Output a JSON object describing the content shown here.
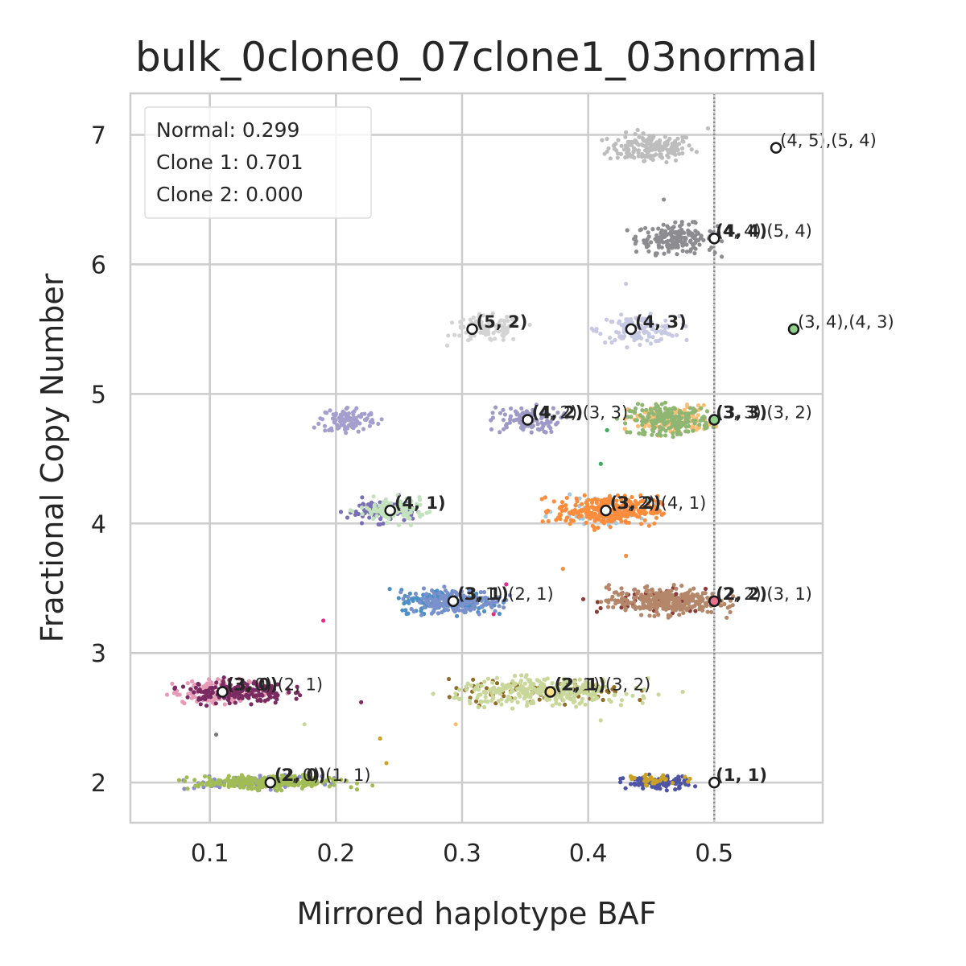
{
  "chart_data": {
    "type": "scatter",
    "title": "bulk_0clone0_07clone1_03normal",
    "xlabel": "Mirrored haplotype BAF",
    "ylabel": "Fractional Copy Number",
    "xlim": [
      0.037,
      0.586
    ],
    "ylim": [
      1.69,
      7.32
    ],
    "xticks": [
      0.1,
      0.2,
      0.3,
      0.4,
      0.5
    ],
    "xtick_labels": [
      "0.1",
      "0.2",
      "0.3",
      "0.4",
      "0.5"
    ],
    "yticks": [
      2,
      3,
      4,
      5,
      6,
      7
    ],
    "ytick_labels": [
      "2",
      "3",
      "4",
      "5",
      "6",
      "7"
    ],
    "grid": true,
    "reference_line": {
      "x": 0.5,
      "style": "dotted",
      "color": "#888888"
    },
    "legend": {
      "placement": "top-left",
      "lines": [
        "Normal: 0.299",
        "Clone 1: 0.701",
        "Clone 2: 0.000"
      ]
    },
    "clusters": [
      {
        "x": 0.45,
        "y": 6.9,
        "sx": 0.017,
        "sy": 0.055,
        "n": 170,
        "color": "#bdbdbd"
      },
      {
        "x": 0.47,
        "y": 6.2,
        "sx": 0.016,
        "sy": 0.055,
        "n": 190,
        "color": "#8c8c91"
      },
      {
        "x": 0.32,
        "y": 5.5,
        "sx": 0.014,
        "sy": 0.05,
        "n": 110,
        "color": "#d4d4d4"
      },
      {
        "x": 0.44,
        "y": 5.5,
        "sx": 0.016,
        "sy": 0.05,
        "n": 130,
        "color": "#c7c9e3"
      },
      {
        "x": 0.21,
        "y": 4.8,
        "sx": 0.011,
        "sy": 0.05,
        "n": 110,
        "color": "#a59fce"
      },
      {
        "x": 0.35,
        "y": 4.8,
        "sx": 0.014,
        "sy": 0.05,
        "n": 100,
        "color": "#9e9ac8"
      },
      {
        "x": 0.465,
        "y": 4.8,
        "sx": 0.016,
        "sy": 0.055,
        "n": 130,
        "color": "#fdbe73"
      },
      {
        "x": 0.465,
        "y": 4.8,
        "sx": 0.016,
        "sy": 0.055,
        "n": 200,
        "color": "#8fb672"
      },
      {
        "x": 0.235,
        "y": 4.1,
        "sx": 0.013,
        "sy": 0.045,
        "n": 90,
        "color": "#7a6fb5"
      },
      {
        "x": 0.245,
        "y": 4.1,
        "sx": 0.013,
        "sy": 0.045,
        "n": 120,
        "color": "#c3e2be"
      },
      {
        "x": 0.415,
        "y": 4.1,
        "sx": 0.02,
        "sy": 0.05,
        "n": 40,
        "color": "#9ecae1"
      },
      {
        "x": 0.415,
        "y": 4.1,
        "sx": 0.02,
        "sy": 0.055,
        "n": 300,
        "color": "#fd8d3c"
      },
      {
        "x": 0.29,
        "y": 3.4,
        "sx": 0.02,
        "sy": 0.045,
        "n": 160,
        "color": "#4e8fc6"
      },
      {
        "x": 0.295,
        "y": 3.4,
        "sx": 0.018,
        "sy": 0.045,
        "n": 160,
        "color": "#7b91cc"
      },
      {
        "x": 0.455,
        "y": 3.4,
        "sx": 0.024,
        "sy": 0.05,
        "n": 60,
        "color": "#8c3c36"
      },
      {
        "x": 0.46,
        "y": 3.4,
        "sx": 0.022,
        "sy": 0.05,
        "n": 320,
        "color": "#b5876a"
      },
      {
        "x": 0.11,
        "y": 2.7,
        "sx": 0.02,
        "sy": 0.045,
        "n": 120,
        "color": "#e69ab5"
      },
      {
        "x": 0.12,
        "y": 2.7,
        "sx": 0.02,
        "sy": 0.045,
        "n": 170,
        "color": "#7a2b62"
      },
      {
        "x": 0.36,
        "y": 2.7,
        "sx": 0.035,
        "sy": 0.045,
        "n": 90,
        "color": "#8f6d27"
      },
      {
        "x": 0.365,
        "y": 2.7,
        "sx": 0.035,
        "sy": 0.05,
        "n": 300,
        "color": "#c9d89a"
      },
      {
        "x": 0.14,
        "y": 2.0,
        "sx": 0.025,
        "sy": 0.025,
        "n": 90,
        "color": "#8b8ccc"
      },
      {
        "x": 0.145,
        "y": 2.0,
        "sx": 0.028,
        "sy": 0.025,
        "n": 280,
        "color": "#a2bc55"
      },
      {
        "x": 0.455,
        "y": 2.0,
        "sx": 0.013,
        "sy": 0.025,
        "n": 110,
        "color": "#4f54a5"
      },
      {
        "x": 0.455,
        "y": 2.02,
        "sx": 0.01,
        "sy": 0.02,
        "n": 30,
        "color": "#c9a227"
      }
    ],
    "outliers": [
      {
        "x": 0.46,
        "y": 6.5,
        "color": "#8c8c91"
      },
      {
        "x": 0.43,
        "y": 5.85,
        "color": "#c7c9e3"
      },
      {
        "x": 0.495,
        "y": 7.05,
        "color": "#bdbdbd"
      },
      {
        "x": 0.41,
        "y": 4.46,
        "color": "#41ab5d"
      },
      {
        "x": 0.38,
        "y": 3.65,
        "color": "#fd8d3c"
      },
      {
        "x": 0.19,
        "y": 3.25,
        "color": "#e7298a"
      },
      {
        "x": 0.335,
        "y": 3.53,
        "color": "#e7298a"
      },
      {
        "x": 0.325,
        "y": 3.3,
        "color": "#e7298a"
      },
      {
        "x": 0.295,
        "y": 2.45,
        "color": "#fdbe73"
      },
      {
        "x": 0.175,
        "y": 2.45,
        "color": "#c9d89a"
      },
      {
        "x": 0.24,
        "y": 2.15,
        "color": "#c9a227"
      },
      {
        "x": 0.235,
        "y": 2.34,
        "color": "#c9a227"
      },
      {
        "x": 0.105,
        "y": 2.37,
        "color": "#7a7a7a"
      },
      {
        "x": 0.22,
        "y": 2.62,
        "color": "#7a2b62"
      },
      {
        "x": 0.475,
        "y": 2.7,
        "color": "#c9d89a"
      },
      {
        "x": 0.41,
        "y": 2.48,
        "color": "#c9d89a"
      },
      {
        "x": 0.43,
        "y": 3.75,
        "color": "#fd8d3c"
      },
      {
        "x": 0.405,
        "y": 3.95,
        "color": "#fd8d3c"
      },
      {
        "x": 0.415,
        "y": 4.72,
        "color": "#41ab5d"
      }
    ],
    "markers": [
      {
        "x": 0.549,
        "y": 6.9,
        "fill": "#ffffff"
      },
      {
        "x": 0.5,
        "y": 6.2,
        "fill": "#ffffff"
      },
      {
        "x": 0.5,
        "y": 6.2,
        "fill": "#ffffff"
      },
      {
        "x": 0.308,
        "y": 5.5,
        "fill": "#ffffff"
      },
      {
        "x": 0.434,
        "y": 5.5,
        "fill": "#ffffff"
      },
      {
        "x": 0.563,
        "y": 5.5,
        "fill": "#8fd18a"
      },
      {
        "x": 0.352,
        "y": 4.8,
        "fill": "#ffffff"
      },
      {
        "x": 0.5,
        "y": 4.8,
        "fill": "#8fd18a"
      },
      {
        "x": 0.243,
        "y": 4.1,
        "fill": "#ffffff"
      },
      {
        "x": 0.414,
        "y": 4.1,
        "fill": "#ffffff"
      },
      {
        "x": 0.293,
        "y": 3.4,
        "fill": "#ffffff"
      },
      {
        "x": 0.5,
        "y": 3.4,
        "fill": "#e7738f"
      },
      {
        "x": 0.11,
        "y": 2.7,
        "fill": "#ffffff"
      },
      {
        "x": 0.37,
        "y": 2.7,
        "fill": "#ffe08a"
      },
      {
        "x": 0.148,
        "y": 2.0,
        "fill": "#ffffff"
      },
      {
        "x": 0.5,
        "y": 2.0,
        "fill": "#ffffff"
      }
    ],
    "annotations": [
      {
        "x": 0.551,
        "y": 6.9,
        "text": "(4, 5),(5, 4)",
        "bold": false
      },
      {
        "x": 0.5,
        "y": 6.2,
        "text": "(4, 4)",
        "bold": true
      },
      {
        "x": 0.5,
        "y": 6.2,
        "text": "(4, 4),(5, 4)",
        "bold": false
      },
      {
        "x": 0.31,
        "y": 5.5,
        "text": "(5, 2)",
        "bold": true
      },
      {
        "x": 0.436,
        "y": 5.5,
        "text": "(4, 3)",
        "bold": true
      },
      {
        "x": 0.565,
        "y": 5.5,
        "text": "(3, 4),(4, 3)",
        "bold": false
      },
      {
        "x": 0.354,
        "y": 4.8,
        "text": "(4, 2)",
        "bold": true
      },
      {
        "x": 0.354,
        "y": 4.8,
        "text": "(4, 2),(3, 3)",
        "bold": false
      },
      {
        "x": 0.5,
        "y": 4.8,
        "text": "(3, 3)",
        "bold": true
      },
      {
        "x": 0.5,
        "y": 4.8,
        "text": "(3, 3),(3, 2)",
        "bold": false
      },
      {
        "x": 0.245,
        "y": 4.1,
        "text": "(4, 1)",
        "bold": true
      },
      {
        "x": 0.416,
        "y": 4.1,
        "text": "(3, 2)",
        "bold": true
      },
      {
        "x": 0.416,
        "y": 4.1,
        "text": "(3, 2),(4, 1)",
        "bold": false
      },
      {
        "x": 0.295,
        "y": 3.4,
        "text": "(3, 1)",
        "bold": true
      },
      {
        "x": 0.295,
        "y": 3.4,
        "text": "(3, 1),(2, 1)",
        "bold": false
      },
      {
        "x": 0.5,
        "y": 3.4,
        "text": "(2, 2)",
        "bold": true
      },
      {
        "x": 0.5,
        "y": 3.4,
        "text": "(2, 2),(3, 1)",
        "bold": false
      },
      {
        "x": 0.112,
        "y": 2.7,
        "text": "(3, 0)",
        "bold": true
      },
      {
        "x": 0.112,
        "y": 2.7,
        "text": "(3, 0),(2, 1)",
        "bold": false
      },
      {
        "x": 0.372,
        "y": 2.7,
        "text": "(2, 1)",
        "bold": true
      },
      {
        "x": 0.372,
        "y": 2.7,
        "text": "(2, 1),(3, 2)",
        "bold": false
      },
      {
        "x": 0.15,
        "y": 2.0,
        "text": "(2, 0)",
        "bold": true
      },
      {
        "x": 0.15,
        "y": 2.0,
        "text": "(2, 0),(1, 1)",
        "bold": false
      },
      {
        "x": 0.5,
        "y": 2.0,
        "text": "(1, 1)",
        "bold": true
      }
    ]
  }
}
